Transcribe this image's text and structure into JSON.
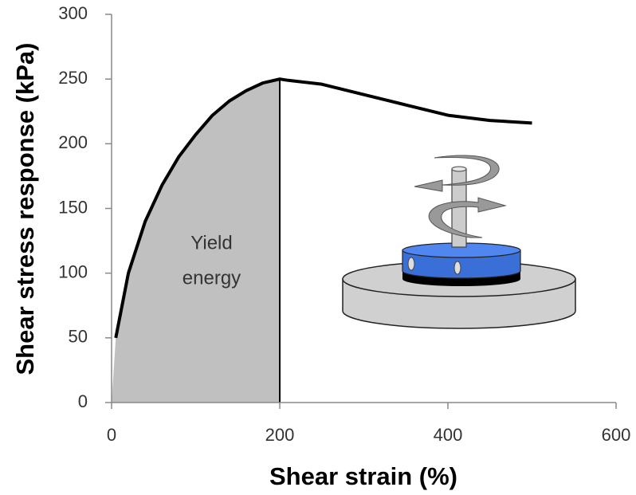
{
  "chart_data": {
    "type": "line",
    "x": [
      5,
      20,
      40,
      60,
      80,
      100,
      120,
      140,
      160,
      180,
      200,
      210,
      250,
      300,
      350,
      400,
      450,
      500
    ],
    "values": [
      50,
      100,
      140,
      168,
      190,
      207,
      222,
      233,
      241,
      247,
      250,
      249,
      246,
      238,
      230,
      222,
      218,
      216
    ],
    "color": "#000000",
    "fill_color": "#c0c0c0",
    "xlim": [
      0,
      600
    ],
    "xticks": [
      0,
      200,
      400,
      600
    ],
    "ylim": [
      0,
      300
    ],
    "yticks": [
      0,
      50,
      100,
      150,
      200,
      250,
      300
    ],
    "xlabel": "Shear strain (%)",
    "ylabel": "Shear stress response (kPa)",
    "annotation": [
      "Yield",
      "energy"
    ]
  }
}
